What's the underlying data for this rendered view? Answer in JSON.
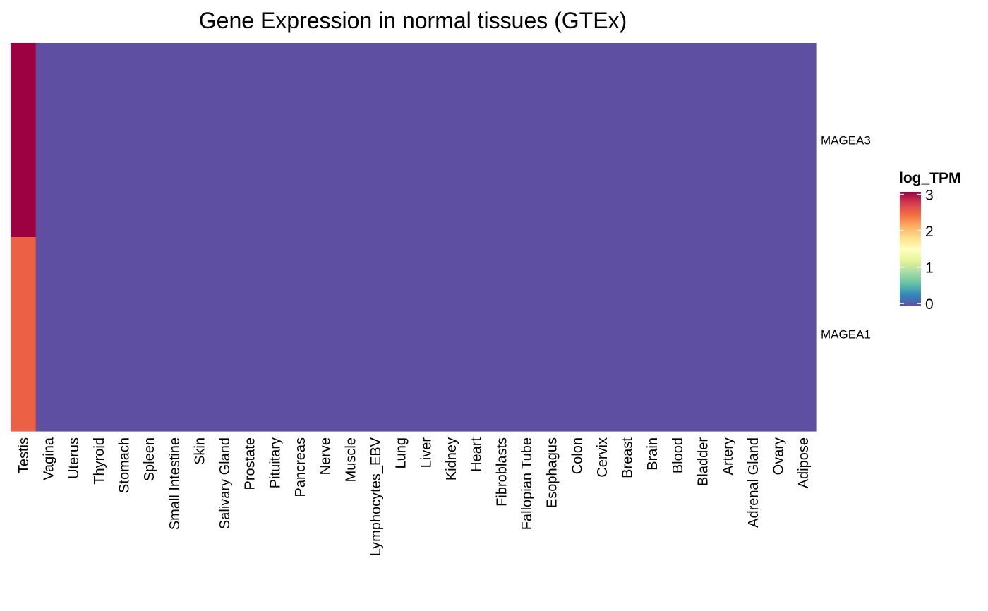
{
  "chart_data": {
    "type": "heatmap",
    "title": "Gene Expression in normal tissues (GTEx)",
    "columns": [
      "Testis",
      "Vagina",
      "Uterus",
      "Thyroid",
      "Stomach",
      "Spleen",
      "Small Intestine",
      "Skin",
      "Salivary Gland",
      "Prostate",
      "Pituitary",
      "Pancreas",
      "Nerve",
      "Muscle",
      "Lymphocytes_EBV",
      "Lung",
      "Liver",
      "Kidney",
      "Heart",
      "Fibroblasts",
      "Fallopian Tube",
      "Esophagus",
      "Colon",
      "Cervix",
      "Breast",
      "Brain",
      "Blood",
      "Bladder",
      "Artery",
      "Adrenal Gland",
      "Ovary",
      "Adipose"
    ],
    "rows": [
      "MAGEA3",
      "MAGEA1"
    ],
    "values": [
      [
        3.15,
        0,
        0,
        0,
        0,
        0,
        0,
        0,
        0,
        0,
        0,
        0,
        0,
        0,
        0,
        0,
        0,
        0,
        0,
        0,
        0,
        0,
        0,
        0,
        0,
        0,
        0,
        0,
        0,
        0,
        0,
        0
      ],
      [
        2.6,
        0,
        0,
        0,
        0,
        0,
        0,
        0,
        0,
        0,
        0,
        0,
        0,
        0,
        0,
        0,
        0,
        0,
        0,
        0,
        0,
        0,
        0,
        0,
        0,
        0,
        0,
        0,
        0,
        0,
        0,
        0
      ]
    ],
    "legend": {
      "title": "log_TPM",
      "ticks": [
        0,
        1,
        2,
        3
      ],
      "range": [
        0,
        3.15
      ],
      "placement": "right",
      "palette": [
        "#5E4FA2",
        "#3288BD",
        "#66C2A5",
        "#ABDDA4",
        "#E6F598",
        "#FFFFBF",
        "#FEE08B",
        "#FDAE61",
        "#F46D43",
        "#D53E4F",
        "#9E0142"
      ]
    }
  }
}
